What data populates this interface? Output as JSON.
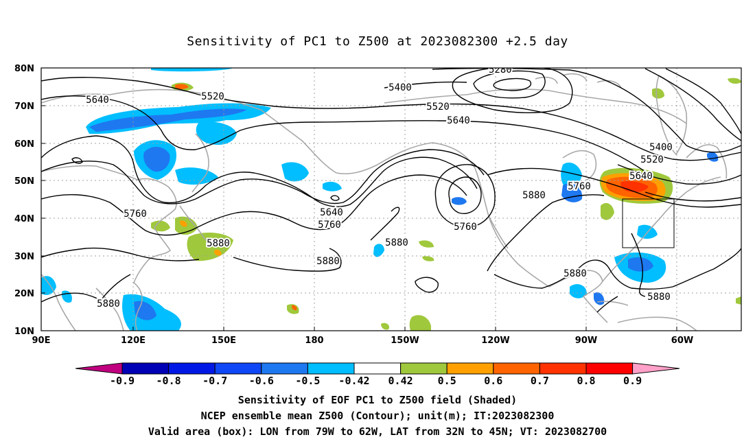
{
  "title": "Sensitivity of PC1 to Z500 at 2023082300 +2.5 day",
  "map": {
    "lat_labels": [
      "80N",
      "70N",
      "60N",
      "50N",
      "40N",
      "30N",
      "20N",
      "10N"
    ],
    "lon_labels": [
      "90E",
      "120E",
      "150E",
      "180",
      "150W",
      "120W",
      "90W",
      "60W"
    ],
    "contour_labels": [
      {
        "text": "5280"
      },
      {
        "text": "5400"
      },
      {
        "text": "5520"
      },
      {
        "text": "5640"
      },
      {
        "text": "5520"
      },
      {
        "text": "5640"
      },
      {
        "text": "5400"
      },
      {
        "text": "5520"
      },
      {
        "text": "5640"
      },
      {
        "text": "5760"
      },
      {
        "text": "5880"
      },
      {
        "text": "5760"
      },
      {
        "text": "5640"
      },
      {
        "text": "5760"
      },
      {
        "text": "5880"
      },
      {
        "text": "5760"
      },
      {
        "text": "5880"
      },
      {
        "text": "5880"
      },
      {
        "text": "5880"
      },
      {
        "text": "5880"
      },
      {
        "text": "5880"
      }
    ],
    "valid_box": {
      "lon_w": "79W",
      "lon_e": "62W",
      "lat_s": "32N",
      "lat_n": "45N"
    }
  },
  "colorbar": {
    "labels": [
      "-0.9",
      "-0.8",
      "-0.7",
      "-0.6",
      "-0.5",
      "-0.42",
      "0.42",
      "0.5",
      "0.6",
      "0.7",
      "0.8",
      "0.9"
    ],
    "colors": [
      "#c0007f",
      "#0000b4",
      "#0018e6",
      "#0f46f5",
      "#1e78f0",
      "#00beff",
      "#ffffff",
      "#a0c83c",
      "#ffa000",
      "#ff6400",
      "#ff3200",
      "#ff0000",
      "#ffa0c8"
    ]
  },
  "captions": [
    "Sensitivity of EOF PC1 to Z500 field (Shaded)",
    "NCEP ensemble mean Z500 (Contour); unit(m); IT:2023082300",
    "Valid area (box): LON from 79W to 62W, LAT from 32N to 45N; VT: 2023082700"
  ]
}
